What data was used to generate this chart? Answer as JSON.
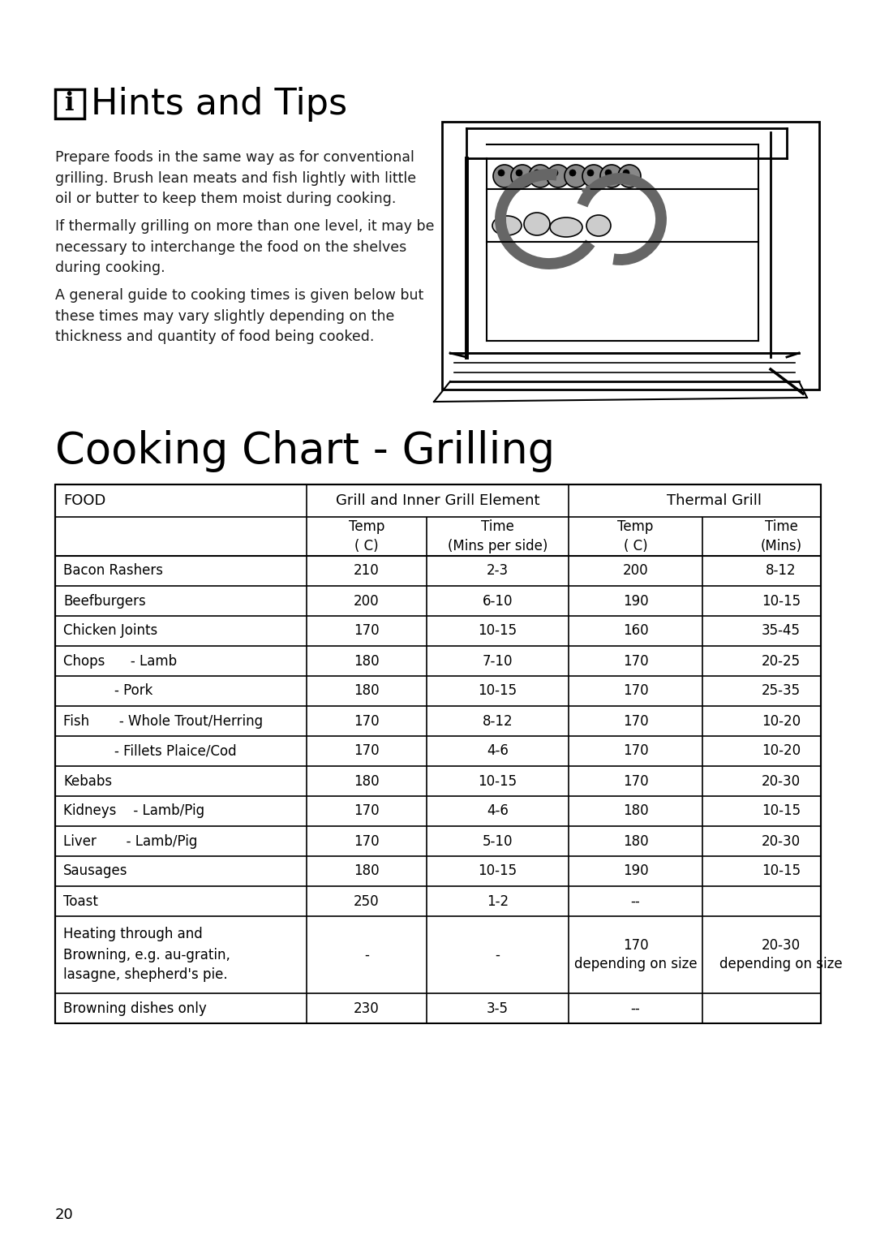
{
  "page_title": "Hints and Tips",
  "hints_icon": "i",
  "hints_paragraphs": [
    "Prepare foods in the same way as for conventional\ngrilling. Brush lean meats and fish lightly with little\noil or butter to keep them moist during cooking.",
    "If thermally grilling on more than one level, it may be\nnecessary to interchange the food on the shelves\nduring cooking.",
    "A general guide to cooking times is given below but\nthese times may vary slightly depending on the\nthickness and quantity of food being cooked."
  ],
  "chart_title": "Cooking Chart - Grilling",
  "header1_food": "FOOD",
  "header1_grill": "Grill and Inner Grill Element",
  "header1_thermal": "Thermal Grill",
  "subheader_temp1": "Temp\n( C)",
  "subheader_time1": "Time\n(Mins per side)",
  "subheader_temp2": "Temp\n( C)",
  "subheader_time2": "Time\n(Mins)",
  "rows": [
    [
      "Bacon Rashers",
      "210",
      "2-3",
      "200",
      "8-12"
    ],
    [
      "Beefburgers",
      "200",
      "6-10",
      "190",
      "10-15"
    ],
    [
      "Chicken Joints",
      "170",
      "10-15",
      "160",
      "35-45"
    ],
    [
      "Chops      - Lamb",
      "180",
      "7-10",
      "170",
      "20-25"
    ],
    [
      "            - Pork",
      "180",
      "10-15",
      "170",
      "25-35"
    ],
    [
      "Fish       - Whole Trout/Herring",
      "170",
      "8-12",
      "170",
      "10-20"
    ],
    [
      "            - Fillets Plaice/Cod",
      "170",
      "4-6",
      "170",
      "10-20"
    ],
    [
      "Kebabs",
      "180",
      "10-15",
      "170",
      "20-30"
    ],
    [
      "Kidneys    - Lamb/Pig",
      "170",
      "4-6",
      "180",
      "10-15"
    ],
    [
      "Liver       - Lamb/Pig",
      "170",
      "5-10",
      "180",
      "20-30"
    ],
    [
      "Sausages",
      "180",
      "10-15",
      "190",
      "10-15"
    ],
    [
      "Toast",
      "250",
      "1-2",
      "--",
      ""
    ],
    [
      "MULTILINE:Heating through and\nBrowning, e.g. au-gratin,\nlasagne, shepherd's pie.",
      "-",
      "-",
      "170\ndepending on size",
      "20-30\ndepending on size"
    ],
    [
      "Browning dishes only",
      "230",
      "3-5",
      "--",
      ""
    ]
  ],
  "page_number": "20",
  "bg_color": "#ffffff",
  "text_color": "#1a1a1a",
  "title_font_size": 32,
  "body_font_size": 12.5,
  "table_font_size": 12
}
